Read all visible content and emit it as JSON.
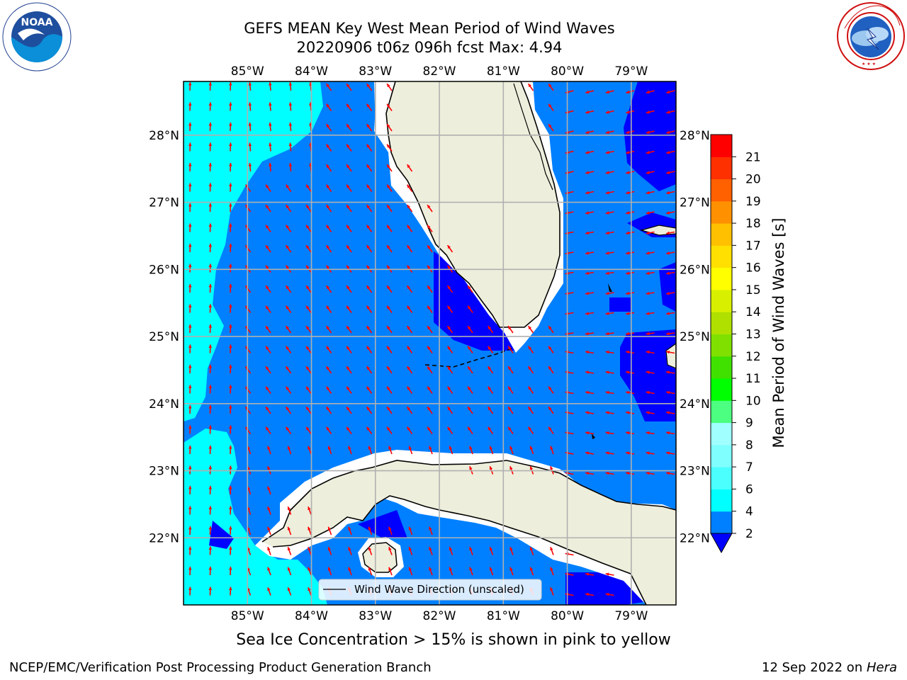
{
  "header": {
    "title_line1": "GEFS MEAN Key West Mean Period of Wind Waves",
    "title_line2": "20220906 t06z 096h fcst   Max: 4.94"
  },
  "logos": {
    "left": {
      "text": "NOAA",
      "ring_text": "NATIONAL OCEANIC AND ATMOSPHERIC ADMINISTRATION · U.S. DEPARTMENT OF COMMERCE",
      "icon": "noaa-logo-icon"
    },
    "right": {
      "ring_text": "NATIONAL WEATHER SERVICE",
      "icon": "nws-logo-icon"
    }
  },
  "map": {
    "lon_labels": [
      "85°W",
      "84°W",
      "83°W",
      "82°W",
      "81°W",
      "80°W",
      "79°W"
    ],
    "lat_labels": [
      "28°N",
      "27°N",
      "26°N",
      "25°N",
      "24°N",
      "23°N",
      "22°N"
    ],
    "lon_range": [
      -86.0,
      -78.3
    ],
    "lat_range": [
      21.0,
      28.8
    ],
    "grid": true,
    "legend": {
      "text": "Wind Wave Direction (unscaled)",
      "placement": "bottom-center"
    },
    "colors": {
      "land": "#eeeedc",
      "period_2_4": "#0080ff",
      "period_4_6": "#00ffff",
      "period_below_2": "#0000ff",
      "arrow": "#ff0000",
      "coast": "#000000",
      "gridline": "#b0b0b0"
    }
  },
  "colorbar": {
    "label": "Mean Period of Wind Waves [s]",
    "ticks": [
      "2",
      "4",
      "6",
      "7",
      "8",
      "9",
      "10",
      "11",
      "12",
      "13",
      "14",
      "15",
      "16",
      "17",
      "18",
      "19",
      "20",
      "21"
    ],
    "colors": [
      "#0080ff",
      "#00ffff",
      "#4cffff",
      "#80ffff",
      "#a0ffff",
      "#4cff80",
      "#00ff00",
      "#40e000",
      "#80e000",
      "#b0e000",
      "#d8f000",
      "#ffff00",
      "#ffe000",
      "#ffc000",
      "#ff9000",
      "#ff6000",
      "#ff3000",
      "#ff0000"
    ],
    "under_color": "#0000ff"
  },
  "captions": {
    "sea_ice": "Sea Ice Concentration > 15% is shown in pink to yellow"
  },
  "footer": {
    "left": "NCEP/EMC/Verification Post Processing Product Generation Branch",
    "right_date": "12 Sep 2022 on ",
    "right_machine": "Hera"
  }
}
